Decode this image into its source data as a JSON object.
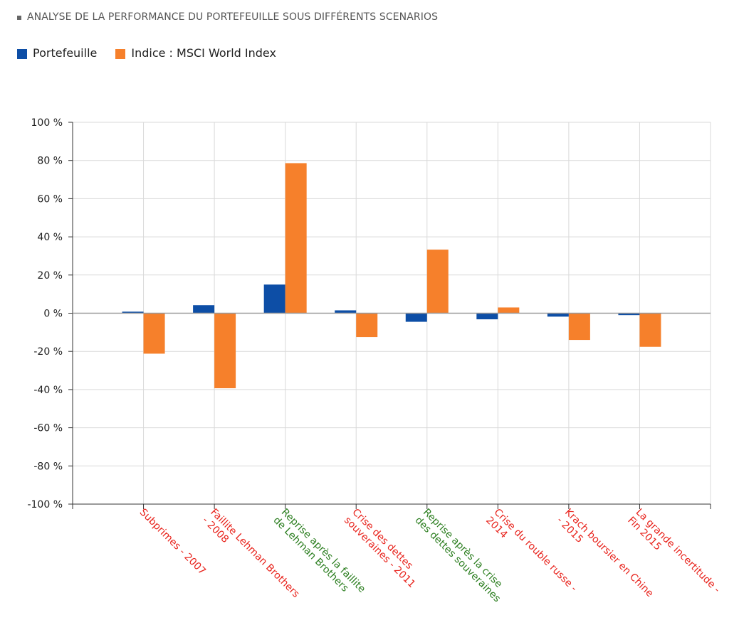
{
  "header": {
    "title": "ANALYSE DE LA PERFORMANCE DU PORTEFEUILLE SOUS DIFFÉRENTS SCENARIOS"
  },
  "legend": {
    "items": [
      {
        "label": "Portefeuille",
        "color": "#0d4ea6"
      },
      {
        "label": "Indice : MSCI World Index",
        "color": "#f6802b"
      }
    ]
  },
  "colors": {
    "portefeuille": "#0d4ea6",
    "indice": "#f6802b",
    "category_negative": "#e8231c",
    "category_positive": "#2a7d1e",
    "grid": "#d9d9d9",
    "zero_line": "#999999"
  },
  "chart_data": {
    "type": "bar",
    "title": "ANALYSE DE LA PERFORMANCE DU PORTEFEUILLE SOUS DIFFÉRENTS SCENARIOS",
    "xlabel": "",
    "ylabel": "",
    "ylim": [
      -100,
      100
    ],
    "yticks": [
      100,
      80,
      60,
      40,
      20,
      0,
      -20,
      -40,
      -60,
      -80,
      -100
    ],
    "ytick_labels": [
      "100 %",
      "80 %",
      "60 %",
      "40 %",
      "20 %",
      "0 %",
      "-20 %",
      "-40 %",
      "-60 %",
      "-80 %",
      "-100 %"
    ],
    "grid": true,
    "legend_position": "top-left",
    "categories": [
      {
        "lines": [
          "Subprimes - 2007"
        ],
        "tone": "negative"
      },
      {
        "lines": [
          "Faillite Lehman Brothers",
          "- 2008"
        ],
        "tone": "negative"
      },
      {
        "lines": [
          "Reprise après la faillite",
          "de Lehman Brothers"
        ],
        "tone": "positive"
      },
      {
        "lines": [
          "Crise des dettes",
          "souveraines - 2011"
        ],
        "tone": "negative"
      },
      {
        "lines": [
          "Reprise après la crise",
          "des dettes souveraines"
        ],
        "tone": "positive"
      },
      {
        "lines": [
          "Crise du rouble russe -",
          "2014"
        ],
        "tone": "negative"
      },
      {
        "lines": [
          "Krach boursier en Chine",
          "- 2015"
        ],
        "tone": "negative"
      },
      {
        "lines": [
          "La grande incertitude -",
          "Fin 2015"
        ],
        "tone": "negative"
      }
    ],
    "series": [
      {
        "name": "Portefeuille",
        "values": [
          0.8,
          4.2,
          15.0,
          1.5,
          -4.5,
          -3.2,
          -1.8,
          -1.0
        ]
      },
      {
        "name": "Indice : MSCI World Index",
        "values": [
          -21.2,
          -39.3,
          78.6,
          -12.5,
          33.3,
          3.0,
          -14.0,
          -17.6
        ]
      }
    ]
  }
}
